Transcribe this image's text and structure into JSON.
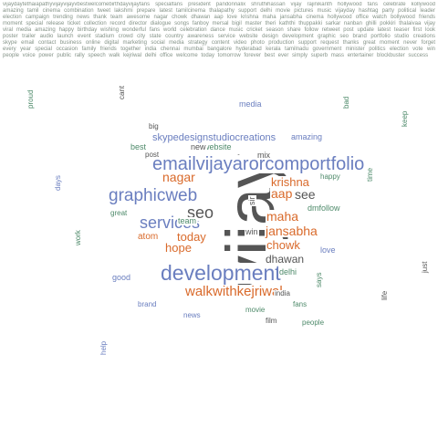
{
  "colors": {
    "gray": "#555555",
    "blue": "#6a7ebf",
    "orange": "#d96a2b",
    "green": "#4e8a6a",
    "small": "#6e7f72"
  },
  "words": {
    "vijay": "vijay",
    "emailvijayaror": "emailvijayarorcomportfolio",
    "development": "development",
    "graphicweb": "graphicweb",
    "services": "services",
    "walkwithkejriwal": "walkwithkejriwal",
    "seo": "seo",
    "today": "today",
    "hope": "hope",
    "krishna": "krishna",
    "aap": "aap",
    "maha": "maha",
    "jansabha": "jansabha",
    "chowk": "chowk",
    "dhawan": "dhawan",
    "nagar": "nagar",
    "see": "see",
    "atom": "atom",
    "team": "team",
    "website": "website",
    "skypedesign": "skypedesignstudiocreations",
    "amazing": "amazing",
    "best": "best",
    "new": "new",
    "media": "media",
    "mix": "mix",
    "delhi": "delhi",
    "win": "win",
    "post": "post",
    "good": "good",
    "love": "love",
    "happy": "happy",
    "great": "great",
    "dmfollow": "dmfollow",
    "bad": "bad",
    "cant": "cant",
    "says": "says",
    "people": "people",
    "time": "time",
    "work": "work",
    "life": "life",
    "film": "film",
    "movie": "movie",
    "days": "days",
    "india": "india",
    "sir": "sir",
    "brand": "brand",
    "keep": "keep",
    "big": "big",
    "proud": "proud",
    "fans": "fans",
    "just": "just",
    "help": "help",
    "news": "news"
  },
  "filler_text": "vijaydaytethaiapathyvijayvijayvbestwelcomebirthdayvijayfans specialfans president pandonnalix shruthihassan vijay rajinikanth hollywood fans celebrate kollywood amazing tamil cinema combination tweet lakshmi prepare latest tamilcinema thalapathy support delhi movie pictures music vijayday hashtag party political leader election campaign trending news thank team awesome nagar chowk dhawan aap love krishna maha jansabha cinema hollywood office watch bollywood friends moment special release ticket collection record director dialogue songs fanboy mersal bigil master theri kaththi thuppakki sarkar nanban ghilli pokkiri thalaivaa vijay viral media amazing happy birthday wishing wonderful fans world celebration dance music cricket season share follow retweet post update latest teaser first look poster trailer audio launch event stadium crowd city state country awareness service website design development graphic seo brand portfolio studio creations skype email contact business online digital marketing social media strategy content video photo production support request thanks great moment never forget every year special occasion family friends together india chennai mumbai bangalore hyderabad kerala tamilnadu government minister politics election vote win people voice power public rally speech walk kejriwal delhi office welcome today tomorrow forever best ever simply superb mass entertainer blockbuster success"
}
